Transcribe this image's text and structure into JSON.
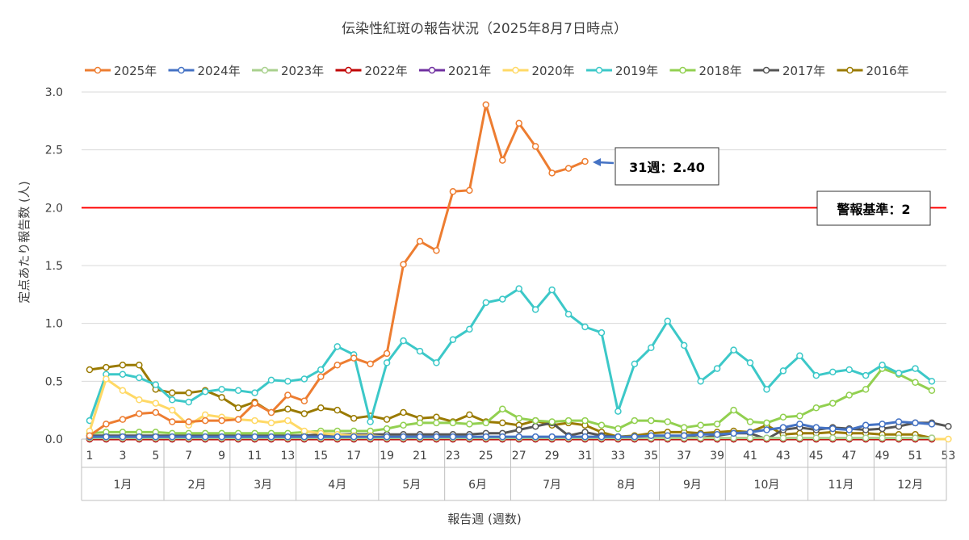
{
  "chart_data": {
    "type": "line",
    "title": "伝染性紅斑の報告状況（2025年8月7日時点）",
    "xlabel": "報告週 (週数)",
    "ylabel": "定点あたり報告数 (人)",
    "ylim": [
      0,
      3.0
    ],
    "yticks": [
      "0.0",
      "0.5",
      "1.0",
      "1.5",
      "2.0",
      "2.5",
      "3.0"
    ],
    "xlim": [
      1,
      53
    ],
    "xticks": [
      "1",
      "3",
      "5",
      "7",
      "9",
      "11",
      "13",
      "15",
      "17",
      "19",
      "21",
      "23",
      "25",
      "27",
      "29",
      "31",
      "33",
      "35",
      "37",
      "39",
      "41",
      "43",
      "45",
      "47",
      "49",
      "51",
      "53"
    ],
    "months": [
      {
        "label": "1月",
        "start": 1,
        "end": 5
      },
      {
        "label": "2月",
        "start": 6,
        "end": 9
      },
      {
        "label": "3月",
        "start": 10,
        "end": 13
      },
      {
        "label": "4月",
        "start": 14,
        "end": 18
      },
      {
        "label": "5月",
        "start": 19,
        "end": 22
      },
      {
        "label": "6月",
        "start": 23,
        "end": 26
      },
      {
        "label": "7月",
        "start": 27,
        "end": 31
      },
      {
        "label": "8月",
        "start": 32,
        "end": 35
      },
      {
        "label": "9月",
        "start": 36,
        "end": 39
      },
      {
        "label": "10月",
        "start": 40,
        "end": 44
      },
      {
        "label": "11月",
        "start": 45,
        "end": 48
      },
      {
        "label": "12月",
        "start": 49,
        "end": 53
      }
    ],
    "grid": "horizontal",
    "legend_position": "top",
    "threshold": {
      "value": 2.0,
      "label": "警報基準：2",
      "color": "#ff0000"
    },
    "annotation": {
      "label": "31週：2.40",
      "x": 31,
      "y": 2.4
    },
    "series": [
      {
        "name": "2016年",
        "color": "#9a7a00",
        "values": [
          0.6,
          0.62,
          0.64,
          0.64,
          0.43,
          0.4,
          0.4,
          0.42,
          0.36,
          0.27,
          0.32,
          0.23,
          0.26,
          0.22,
          0.27,
          0.25,
          0.18,
          0.2,
          0.17,
          0.23,
          0.18,
          0.19,
          0.15,
          0.21,
          0.15,
          0.14,
          0.12,
          0.16,
          0.12,
          0.14,
          0.12,
          0.06,
          0.02,
          0.03,
          0.05,
          0.06,
          0.06,
          0.05,
          0.06,
          0.07,
          0.06,
          0.12,
          0.04,
          0.05,
          0.05,
          0.06,
          0.05,
          0.05,
          0.04,
          0.04,
          0.04,
          0.01
        ]
      },
      {
        "name": "2017年",
        "color": "#555555",
        "values": [
          0.03,
          0.03,
          0.03,
          0.03,
          0.03,
          0.03,
          0.03,
          0.03,
          0.03,
          0.03,
          0.03,
          0.03,
          0.03,
          0.03,
          0.04,
          0.04,
          0.04,
          0.04,
          0.04,
          0.04,
          0.04,
          0.04,
          0.04,
          0.04,
          0.05,
          0.05,
          0.08,
          0.11,
          0.14,
          0.03,
          0.06,
          0.03,
          0.02,
          0.01,
          0.01,
          0.02,
          0.03,
          0.01,
          0.03,
          0.05,
          0.05,
          0.0,
          0.08,
          0.1,
          0.08,
          0.1,
          0.09,
          0.08,
          0.09,
          0.11,
          0.14,
          0.14,
          0.11
        ]
      },
      {
        "name": "2018年",
        "color": "#92d050",
        "values": [
          0.05,
          0.06,
          0.06,
          0.06,
          0.06,
          0.05,
          0.05,
          0.05,
          0.05,
          0.05,
          0.05,
          0.05,
          0.05,
          0.06,
          0.07,
          0.07,
          0.07,
          0.07,
          0.09,
          0.12,
          0.14,
          0.14,
          0.14,
          0.13,
          0.14,
          0.26,
          0.18,
          0.16,
          0.15,
          0.16,
          0.16,
          0.12,
          0.09,
          0.16,
          0.16,
          0.15,
          0.1,
          0.12,
          0.13,
          0.25,
          0.15,
          0.14,
          0.19,
          0.2,
          0.27,
          0.31,
          0.38,
          0.43,
          0.61,
          0.56,
          0.49,
          0.42
        ]
      },
      {
        "name": "2019年",
        "color": "#3cc8c8",
        "values": [
          0.16,
          0.56,
          0.56,
          0.53,
          0.47,
          0.34,
          0.32,
          0.41,
          0.43,
          0.42,
          0.4,
          0.51,
          0.5,
          0.52,
          0.6,
          0.8,
          0.73,
          0.15,
          0.66,
          0.85,
          0.76,
          0.66,
          0.86,
          0.95,
          1.18,
          1.21,
          1.3,
          1.12,
          1.29,
          1.08,
          0.97,
          0.92,
          0.24,
          0.65,
          0.79,
          1.02,
          0.81,
          0.5,
          0.61,
          0.77,
          0.66,
          0.43,
          0.59,
          0.72,
          0.55,
          0.58,
          0.6,
          0.55,
          0.64,
          0.57,
          0.61,
          0.5
        ]
      },
      {
        "name": "2020年",
        "color": "#ffd966",
        "values": [
          0.07,
          0.52,
          0.42,
          0.34,
          0.31,
          0.25,
          0.12,
          0.21,
          0.19,
          0.17,
          0.16,
          0.14,
          0.16,
          0.07,
          0.05,
          0.04,
          0.03,
          0.03,
          0.02,
          0.02,
          0.01,
          0.01,
          0.01,
          0.01,
          0.01,
          0.01,
          0.01,
          0.01,
          0.01,
          0.01,
          0.01,
          0.01,
          0.01,
          0.01,
          0.01,
          0.01,
          0.01,
          0.01,
          0.01,
          0.0,
          0.0,
          0.0,
          0.0,
          0.0,
          0.0,
          0.0,
          0.0,
          0.0,
          0.0,
          0.0,
          0.0,
          0.0,
          0.0
        ]
      },
      {
        "name": "2021年",
        "color": "#7030a0",
        "values": [
          0.0,
          0.0,
          0.0,
          0.0,
          0.0,
          0.0,
          0.0,
          0.0,
          0.0,
          0.0,
          0.0,
          0.0,
          0.0,
          0.0,
          0.0,
          0.0,
          0.0,
          0.0,
          0.0,
          0.0,
          0.0,
          0.0,
          0.0,
          0.0,
          0.0,
          0.0,
          0.0,
          0.0,
          0.0,
          0.0,
          0.0,
          0.0,
          0.0,
          0.0,
          0.0,
          0.0,
          0.0,
          0.0,
          0.0,
          0.0,
          0.0,
          0.0,
          0.0,
          0.0,
          0.0,
          0.0,
          0.0,
          0.0,
          0.0,
          0.0,
          0.0,
          0.0
        ]
      },
      {
        "name": "2022年",
        "color": "#c00000",
        "values": [
          0.0,
          0.0,
          0.0,
          0.0,
          0.0,
          0.0,
          0.0,
          0.0,
          0.0,
          0.0,
          0.0,
          0.0,
          0.0,
          0.0,
          0.0,
          0.0,
          0.0,
          0.0,
          0.0,
          0.0,
          0.0,
          0.0,
          0.0,
          0.0,
          0.0,
          0.0,
          0.0,
          0.0,
          0.0,
          0.0,
          0.0,
          0.0,
          0.0,
          0.0,
          0.0,
          0.0,
          0.0,
          0.0,
          0.0,
          0.0,
          0.0,
          0.0,
          0.0,
          0.0,
          0.0,
          0.0,
          0.0,
          0.0,
          0.0,
          0.0,
          0.0,
          0.0
        ]
      },
      {
        "name": "2023年",
        "color": "#a9d18e",
        "values": [
          0.01,
          0.01,
          0.01,
          0.01,
          0.01,
          0.01,
          0.01,
          0.01,
          0.01,
          0.01,
          0.01,
          0.01,
          0.01,
          0.01,
          0.01,
          0.01,
          0.01,
          0.01,
          0.01,
          0.01,
          0.01,
          0.01,
          0.01,
          0.01,
          0.01,
          0.01,
          0.01,
          0.01,
          0.01,
          0.01,
          0.01,
          0.01,
          0.01,
          0.01,
          0.01,
          0.01,
          0.01,
          0.01,
          0.01,
          0.01,
          0.01,
          0.01,
          0.01,
          0.01,
          0.01,
          0.01,
          0.01,
          0.01,
          0.01,
          0.01,
          0.01,
          0.01
        ]
      },
      {
        "name": "2024年",
        "color": "#4472c4",
        "values": [
          0.02,
          0.02,
          0.02,
          0.02,
          0.02,
          0.02,
          0.02,
          0.02,
          0.02,
          0.02,
          0.02,
          0.02,
          0.02,
          0.02,
          0.02,
          0.02,
          0.02,
          0.02,
          0.02,
          0.02,
          0.02,
          0.02,
          0.02,
          0.02,
          0.02,
          0.02,
          0.02,
          0.02,
          0.02,
          0.02,
          0.02,
          0.02,
          0.02,
          0.02,
          0.03,
          0.03,
          0.03,
          0.04,
          0.04,
          0.05,
          0.06,
          0.08,
          0.1,
          0.13,
          0.1,
          0.09,
          0.08,
          0.12,
          0.13,
          0.15,
          0.14,
          0.13
        ]
      },
      {
        "name": "2025年",
        "color": "#ed7d31",
        "values": [
          0.03,
          0.13,
          0.17,
          0.22,
          0.23,
          0.15,
          0.15,
          0.16,
          0.16,
          0.17,
          0.31,
          0.23,
          0.38,
          0.33,
          0.54,
          0.64,
          0.7,
          0.65,
          0.74,
          1.51,
          1.71,
          1.63,
          2.14,
          2.15,
          2.89,
          2.41,
          2.73,
          2.53,
          2.3,
          2.34,
          2.4
        ]
      }
    ]
  }
}
